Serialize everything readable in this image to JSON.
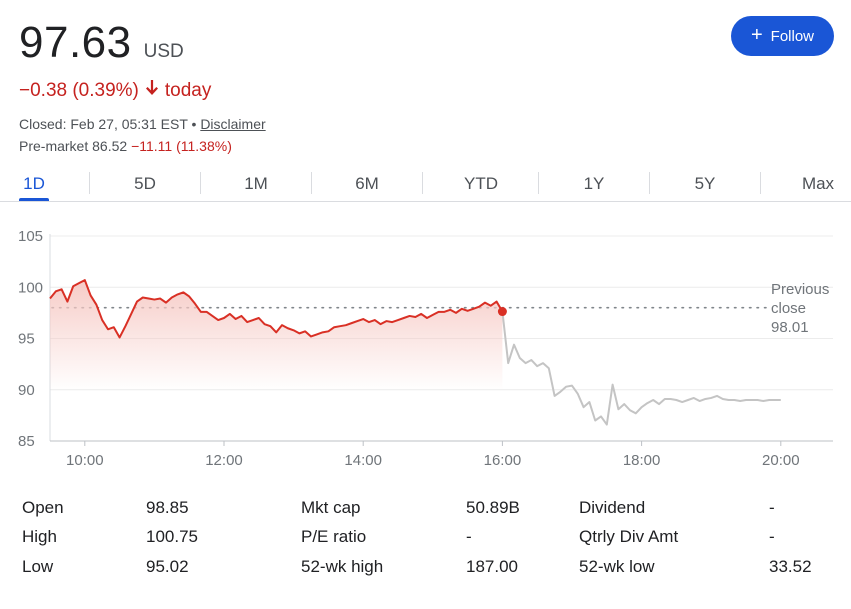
{
  "quote": {
    "price": "97.63",
    "currency": "USD",
    "change": "−0.38 (0.39%)",
    "change_arrow": "🡓",
    "change_suffix": "today",
    "closed_text": "Closed: Feb 27, 05:31 EST •",
    "disclaimer": "Disclaimer",
    "premarket_label": "Pre-market 86.52",
    "premarket_change": "−11.11 (11.38%)"
  },
  "follow": {
    "plus": "+",
    "label": "Follow",
    "color": "#1a56d6"
  },
  "tabs": [
    {
      "label": "1D",
      "active": true
    },
    {
      "label": "5D",
      "active": false
    },
    {
      "label": "1M",
      "active": false
    },
    {
      "label": "6M",
      "active": false
    },
    {
      "label": "YTD",
      "active": false
    },
    {
      "label": "1Y",
      "active": false
    },
    {
      "label": "5Y",
      "active": false
    },
    {
      "label": "Max",
      "active": false
    }
  ],
  "chart_data": {
    "type": "line",
    "xlabel": "",
    "ylabel": "",
    "ylim": [
      85,
      105
    ],
    "xlim": [
      "09:30",
      "20:45"
    ],
    "y_ticks": [
      "105",
      "100",
      "95",
      "90",
      "85"
    ],
    "x_ticks": [
      "10:00",
      "12:00",
      "14:00",
      "16:00",
      "18:00",
      "20:00"
    ],
    "grid": "horizontal",
    "previous_close": {
      "value": 98.01,
      "label": [
        "Previous",
        "close",
        "98.01"
      ]
    },
    "colors": {
      "regular": "#d93025",
      "extended": "#c4c4c4",
      "fill": "#f6c9c4"
    },
    "series": [
      {
        "session": "regular",
        "x": [
          "09:30",
          "09:35",
          "09:40",
          "09:45",
          "09:50",
          "09:55",
          "10:00",
          "10:05",
          "10:10",
          "10:15",
          "10:20",
          "10:25",
          "10:30",
          "10:35",
          "10:40",
          "10:45",
          "10:50",
          "10:55",
          "11:00",
          "11:05",
          "11:10",
          "11:15",
          "11:20",
          "11:25",
          "11:30",
          "11:35",
          "11:40",
          "11:45",
          "11:50",
          "11:55",
          "12:00",
          "12:05",
          "12:10",
          "12:15",
          "12:20",
          "12:25",
          "12:30",
          "12:35",
          "12:40",
          "12:45",
          "12:50",
          "12:55",
          "13:00",
          "13:05",
          "13:10",
          "13:15",
          "13:20",
          "13:25",
          "13:30",
          "13:35",
          "13:40",
          "13:45",
          "13:50",
          "13:55",
          "14:00",
          "14:05",
          "14:10",
          "14:15",
          "14:20",
          "14:25",
          "14:30",
          "14:35",
          "14:40",
          "14:45",
          "14:50",
          "14:55",
          "15:00",
          "15:05",
          "15:10",
          "15:15",
          "15:20",
          "15:25",
          "15:30",
          "15:35",
          "15:40",
          "15:45",
          "15:50",
          "15:55",
          "16:00"
        ],
        "y": [
          98.9,
          99.6,
          99.8,
          98.6,
          100.1,
          100.4,
          100.7,
          99.2,
          98.3,
          96.8,
          95.9,
          96.1,
          95.1,
          96.2,
          97.4,
          98.6,
          99.0,
          98.9,
          98.8,
          98.9,
          98.5,
          99.0,
          99.3,
          99.5,
          99.1,
          98.4,
          97.6,
          97.6,
          97.2,
          96.8,
          97.0,
          97.4,
          96.9,
          97.2,
          96.6,
          96.8,
          97.0,
          96.4,
          96.2,
          95.6,
          96.3,
          96.0,
          95.8,
          95.5,
          95.7,
          95.2,
          95.4,
          95.6,
          95.7,
          96.1,
          96.2,
          96.3,
          96.5,
          96.7,
          96.9,
          96.6,
          96.8,
          96.4,
          96.7,
          96.6,
          96.8,
          97.0,
          97.2,
          97.1,
          97.4,
          97.0,
          97.3,
          97.6,
          97.6,
          97.8,
          97.5,
          97.9,
          97.7,
          97.9,
          98.1,
          98.5,
          98.2,
          98.6,
          97.63
        ]
      },
      {
        "session": "extended",
        "x": [
          "16:00",
          "16:05",
          "16:10",
          "16:15",
          "16:20",
          "16:25",
          "16:30",
          "16:35",
          "16:40",
          "16:45",
          "16:50",
          "16:55",
          "17:00",
          "17:05",
          "17:10",
          "17:15",
          "17:20",
          "17:25",
          "17:30",
          "17:35",
          "17:40",
          "17:45",
          "17:50",
          "17:55",
          "18:00",
          "18:05",
          "18:10",
          "18:15",
          "18:20",
          "18:25",
          "18:30",
          "18:35",
          "18:40",
          "18:45",
          "18:50",
          "18:55",
          "19:00",
          "19:05",
          "19:10",
          "19:15",
          "19:20",
          "19:25",
          "19:30",
          "19:35",
          "19:40",
          "19:45",
          "19:50",
          "19:55",
          "20:00"
        ],
        "y": [
          97.63,
          92.6,
          94.4,
          93.1,
          92.6,
          92.9,
          92.3,
          92.6,
          92.1,
          89.4,
          89.8,
          90.3,
          90.4,
          89.6,
          88.3,
          88.8,
          87.0,
          87.4,
          86.6,
          90.5,
          88.1,
          88.6,
          88.0,
          87.7,
          88.3,
          88.7,
          89.0,
          88.6,
          89.1,
          89.1,
          89.0,
          88.8,
          89.0,
          89.2,
          88.9,
          89.1,
          89.2,
          89.4,
          89.1,
          89.0,
          89.0,
          88.9,
          89.0,
          89.0,
          89.0,
          88.9,
          89.0,
          89.0,
          89.0
        ]
      }
    ]
  },
  "stats": [
    [
      {
        "label": "Open",
        "value": "98.85"
      },
      {
        "label": "Mkt cap",
        "value": "50.89B"
      },
      {
        "label": "Dividend",
        "value": "-"
      }
    ],
    [
      {
        "label": "High",
        "value": "100.75"
      },
      {
        "label": "P/E ratio",
        "value": "-"
      },
      {
        "label": "Qtrly Div Amt",
        "value": "-"
      }
    ],
    [
      {
        "label": "Low",
        "value": "95.02"
      },
      {
        "label": "52-wk high",
        "value": "187.00"
      },
      {
        "label": "52-wk low",
        "value": "33.52"
      }
    ]
  ]
}
